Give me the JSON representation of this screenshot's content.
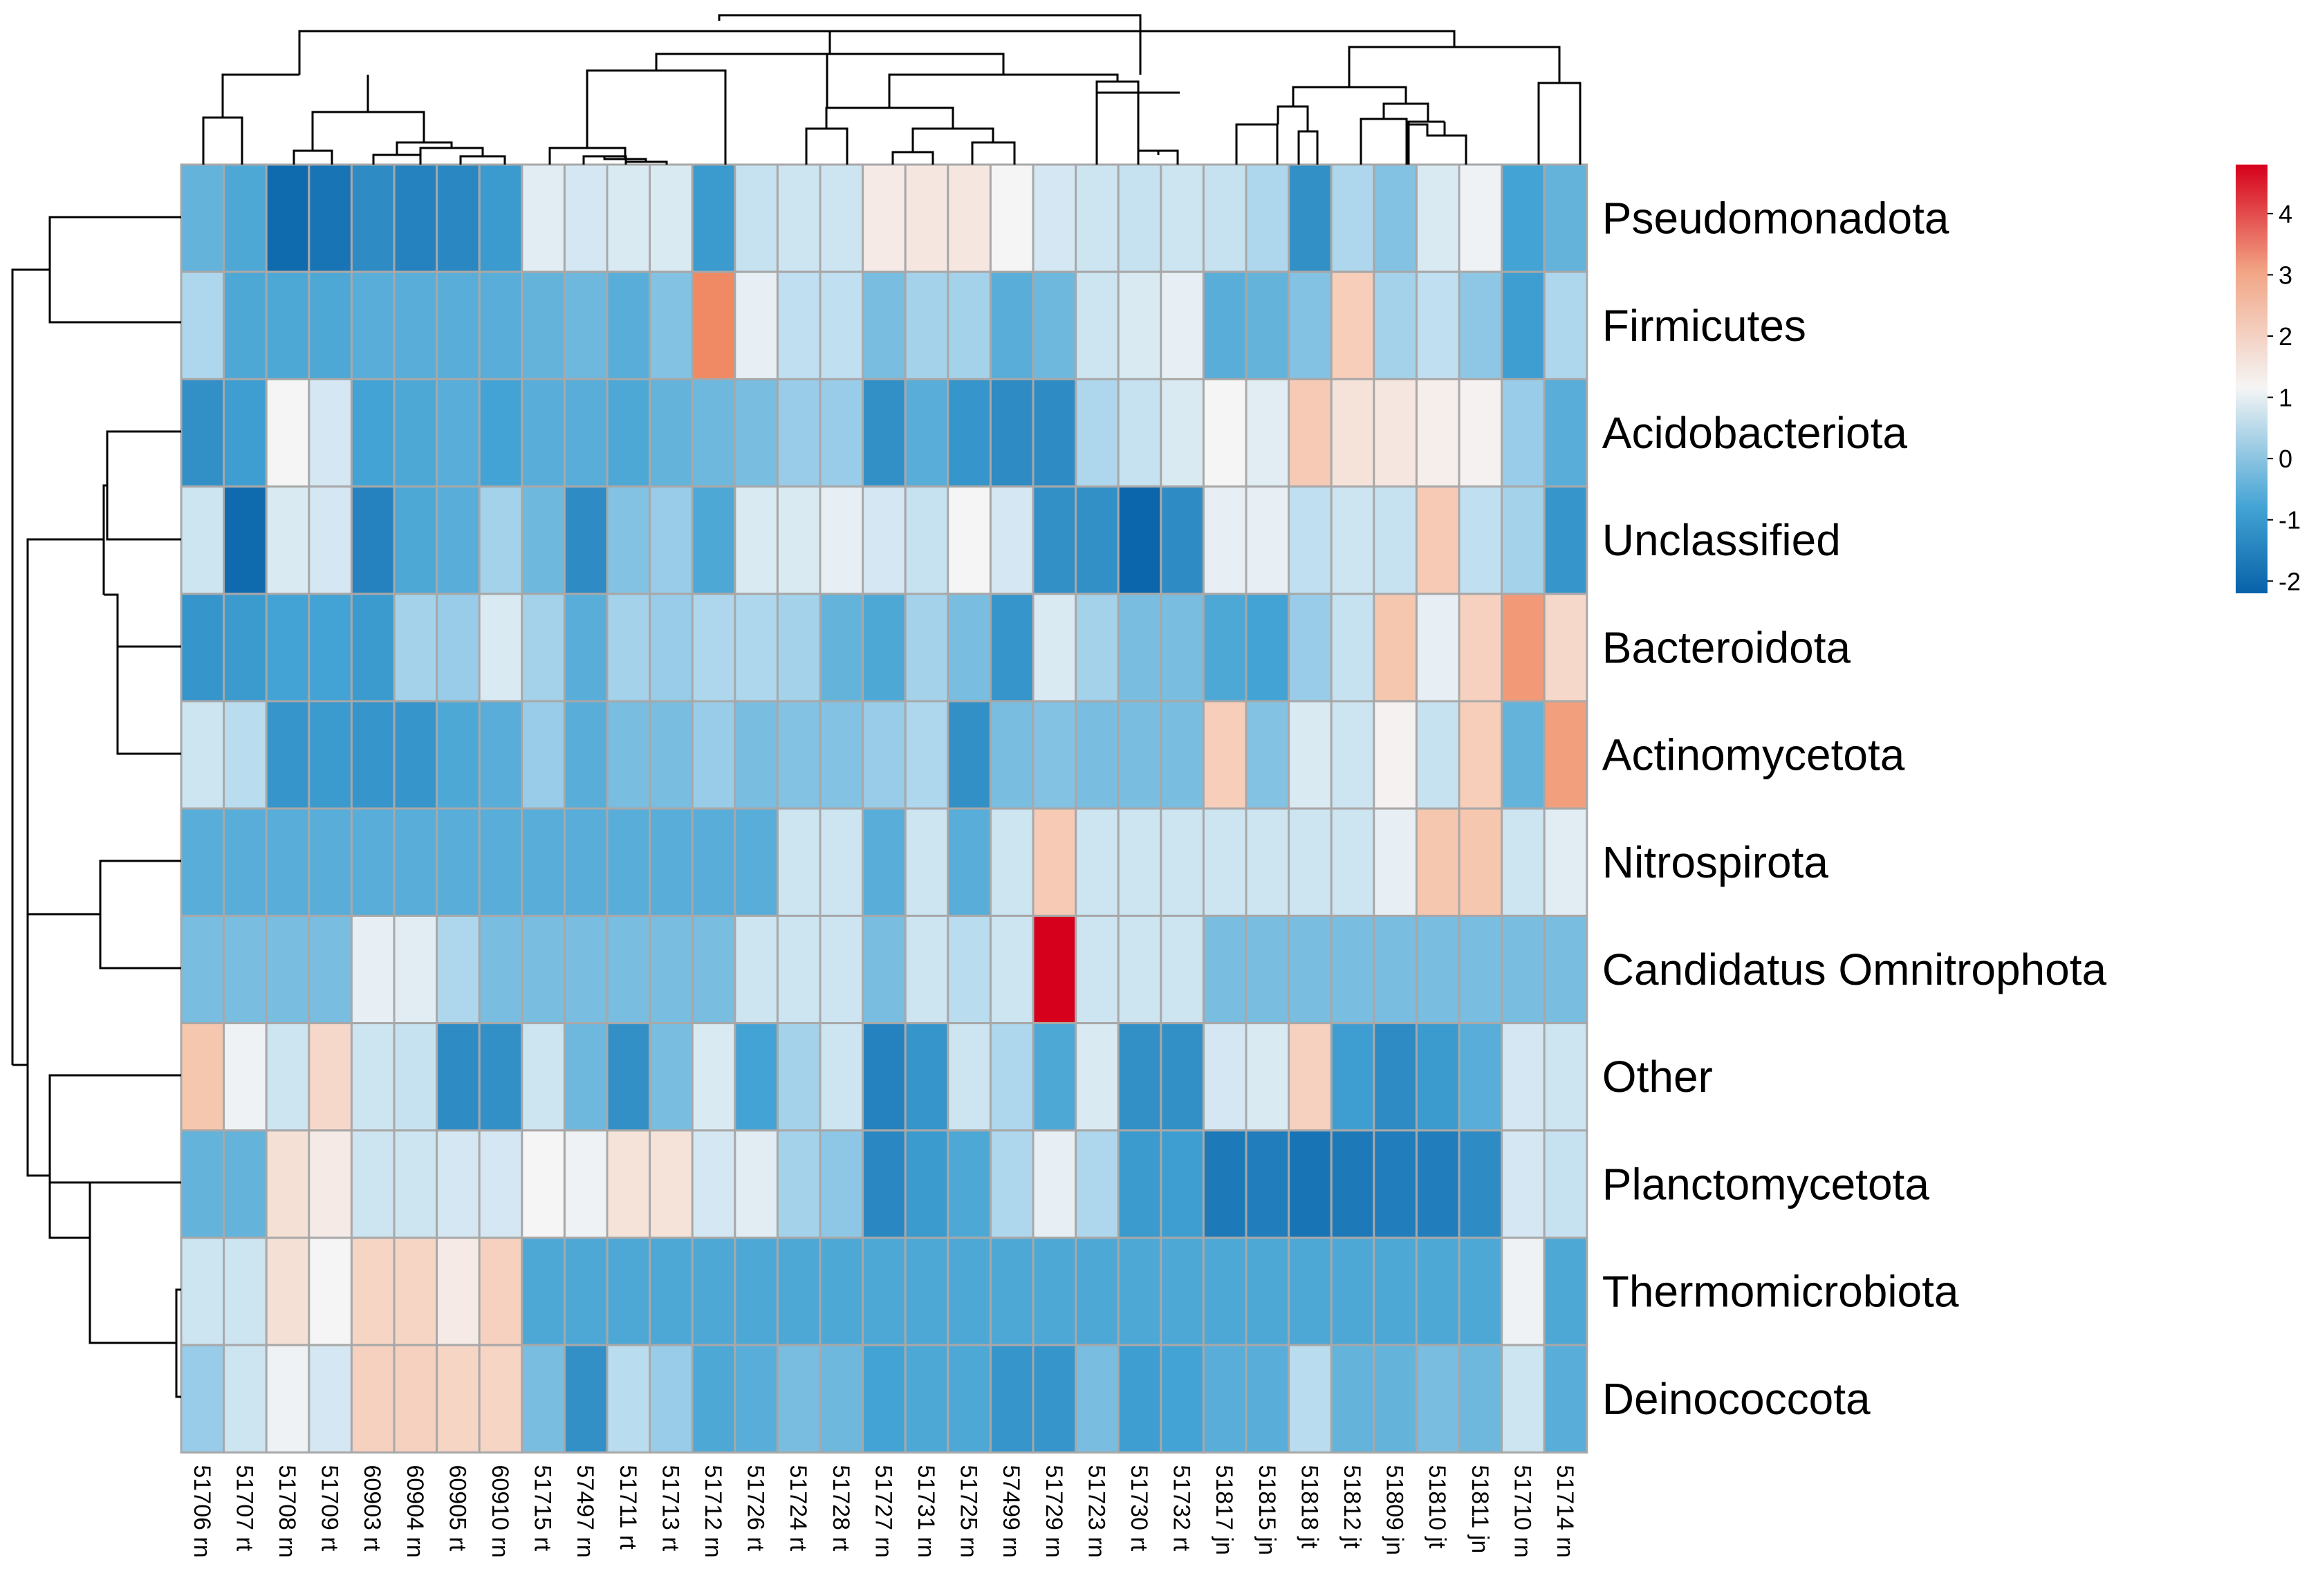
{
  "chart_data": {
    "type": "heatmap",
    "title": "",
    "rows": [
      "Pseudomonadota",
      "Firmicutes",
      "Acidobacteriota",
      "Unclassified",
      "Bacteroidota",
      "Actinomycetota",
      "Nitrospirota",
      "Candidatus Omnitrophota",
      "Other",
      "Planctomycetota",
      "Thermomicrobiota",
      "Deinococcota"
    ],
    "columns": [
      "51706 rn",
      "51707 rt",
      "51708 rn",
      "51709 rt",
      "60903 rt",
      "60904 rn",
      "60905 rt",
      "60910 rn",
      "51715 rt",
      "57497 rn",
      "51711 rt",
      "51713 rt",
      "51712 rn",
      "51726 rt",
      "51724 rt",
      "51728 rt",
      "51727 rn",
      "51731 rn",
      "51725 rn",
      "57499 rn",
      "51729 rn",
      "51723 rn",
      "51730 rt",
      "51732 rt",
      "51817 jn",
      "51815 jn",
      "51818 jt",
      "51812 jt",
      "51809 jn",
      "51810 jt",
      "51811 jn",
      "51710 rn",
      "51714 rn"
    ],
    "values": [
      [
        -0.5,
        -0.7,
        -2.0,
        -1.8,
        -1.3,
        -1.5,
        -1.4,
        -1.0,
        0.9,
        0.7,
        0.8,
        0.8,
        -1.0,
        0.5,
        0.6,
        0.6,
        1.5,
        1.6,
        1.6,
        1.2,
        0.7,
        0.6,
        0.5,
        0.6,
        0.5,
        0.2,
        -1.2,
        0.2,
        -0.2,
        0.8,
        1.1,
        -0.8,
        -0.5
      ],
      [
        0.2,
        -0.7,
        -0.7,
        -0.7,
        -0.6,
        -0.6,
        -0.6,
        -0.6,
        -0.5,
        -0.4,
        -0.6,
        -0.2,
        3.7,
        1.0,
        0.4,
        0.4,
        -0.3,
        0.1,
        0.1,
        -0.6,
        -0.4,
        0.6,
        0.8,
        1.0,
        -0.6,
        -0.5,
        -0.2,
        2.3,
        0.1,
        0.4,
        -0.1,
        -0.9,
        0.2
      ],
      [
        -1.2,
        -0.9,
        1.2,
        0.7,
        -0.8,
        -0.7,
        -0.6,
        -0.8,
        -0.6,
        -0.6,
        -0.7,
        -0.5,
        -0.4,
        -0.3,
        0.0,
        0.0,
        -1.2,
        -0.6,
        -1.1,
        -1.3,
        -1.3,
        0.2,
        0.5,
        0.8,
        1.2,
        0.9,
        2.4,
        1.7,
        1.6,
        1.4,
        1.3,
        0.0,
        -0.6
      ],
      [
        0.6,
        -2.0,
        0.8,
        0.7,
        -1.5,
        -0.7,
        -0.6,
        0.1,
        -0.4,
        -1.3,
        -0.2,
        0.0,
        -0.7,
        0.8,
        0.8,
        1.0,
        0.7,
        0.5,
        1.2,
        0.7,
        -1.2,
        -1.2,
        -2.1,
        -1.3,
        1.0,
        1.0,
        0.4,
        0.6,
        0.5,
        2.4,
        0.4,
        0.1,
        -1.1
      ],
      [
        -1.1,
        -1.0,
        -0.8,
        -0.8,
        -1.0,
        0.1,
        0.0,
        0.8,
        0.1,
        -0.6,
        0.1,
        0.0,
        0.2,
        0.2,
        0.1,
        -0.5,
        -0.7,
        0.1,
        -0.3,
        -1.1,
        0.8,
        0.1,
        -0.3,
        -0.3,
        -0.7,
        -0.8,
        0.0,
        0.5,
        2.5,
        1.0,
        2.2,
        3.4,
        2.0
      ],
      [
        0.6,
        0.3,
        -1.1,
        -1.0,
        -1.1,
        -1.1,
        -0.7,
        -0.6,
        0.0,
        -0.6,
        -0.3,
        -0.3,
        0.0,
        -0.3,
        -0.2,
        -0.2,
        0.0,
        0.2,
        -1.2,
        -0.3,
        -0.2,
        -0.3,
        -0.3,
        -0.3,
        2.3,
        -0.2,
        0.8,
        0.6,
        1.3,
        0.5,
        2.3,
        -0.5,
        3.3
      ],
      [
        -0.6,
        -0.6,
        -0.6,
        -0.6,
        -0.6,
        -0.6,
        -0.6,
        -0.6,
        -0.6,
        -0.6,
        -0.6,
        -0.6,
        -0.6,
        -0.6,
        0.6,
        0.6,
        -0.6,
        0.6,
        -0.6,
        0.6,
        2.4,
        0.6,
        0.6,
        0.6,
        0.6,
        0.6,
        0.6,
        0.6,
        1.0,
        2.5,
        2.5,
        0.6,
        0.9
      ],
      [
        -0.3,
        -0.3,
        -0.3,
        -0.3,
        1.0,
        0.9,
        0.2,
        -0.3,
        -0.3,
        -0.3,
        -0.3,
        -0.3,
        -0.3,
        0.6,
        0.6,
        0.6,
        -0.3,
        0.6,
        0.3,
        0.6,
        4.8,
        0.6,
        0.6,
        0.6,
        -0.3,
        -0.3,
        -0.3,
        -0.3,
        -0.3,
        -0.3,
        -0.3,
        -0.3,
        -0.3
      ],
      [
        2.5,
        1.1,
        0.6,
        2.0,
        0.6,
        0.5,
        -1.3,
        -1.2,
        0.6,
        -0.4,
        -1.2,
        -0.3,
        0.8,
        -0.8,
        0.1,
        0.6,
        -1.5,
        -1.1,
        0.6,
        0.2,
        -0.7,
        0.8,
        -1.2,
        -1.2,
        0.7,
        0.8,
        2.2,
        -0.9,
        -1.3,
        -1.0,
        -0.6,
        0.7,
        0.6
      ],
      [
        -0.5,
        -0.5,
        1.8,
        1.5,
        0.6,
        0.6,
        0.7,
        0.7,
        1.2,
        1.1,
        1.7,
        1.7,
        0.7,
        0.9,
        0.1,
        -0.1,
        -1.4,
        -1.0,
        -0.7,
        0.2,
        1.0,
        0.2,
        -1.0,
        -0.9,
        -1.7,
        -1.6,
        -1.8,
        -1.7,
        -1.6,
        -1.6,
        -1.3,
        0.7,
        0.5
      ],
      [
        0.6,
        0.6,
        1.8,
        1.2,
        2.1,
        2.1,
        1.5,
        2.2,
        -0.7,
        -0.7,
        -0.7,
        -0.7,
        -0.7,
        -0.7,
        -0.7,
        -0.7,
        -0.7,
        -0.7,
        -0.7,
        -0.7,
        -0.7,
        -0.7,
        -0.7,
        -0.7,
        -0.7,
        -0.7,
        -0.7,
        -0.7,
        -0.7,
        -0.7,
        -0.7,
        1.1,
        -0.7
      ],
      [
        0.0,
        0.6,
        1.1,
        0.7,
        2.2,
        2.2,
        2.1,
        2.1,
        -0.3,
        -1.2,
        0.3,
        0.0,
        -0.7,
        -0.6,
        -0.3,
        -0.4,
        -0.8,
        -0.7,
        -0.7,
        -1.1,
        -1.1,
        -0.3,
        -0.9,
        -0.8,
        -0.6,
        -0.6,
        0.3,
        -0.5,
        -0.5,
        -0.3,
        -0.4,
        0.6,
        -0.6
      ]
    ],
    "color_scale": {
      "min": -2.2,
      "max": 4.8,
      "low_color": "#0861a8",
      "mid_color": "#f5f5f5",
      "high_color": "#d6001c",
      "mid_value": 1.2
    },
    "legend_ticks": [
      "4",
      "3",
      "2",
      "1",
      "0",
      "-1",
      "-2"
    ],
    "legend_tick_values": [
      4,
      3,
      2,
      1,
      0,
      -1,
      -2
    ],
    "legend_placement": "top-right",
    "row_dendrogram": true,
    "column_dendrogram": true
  }
}
